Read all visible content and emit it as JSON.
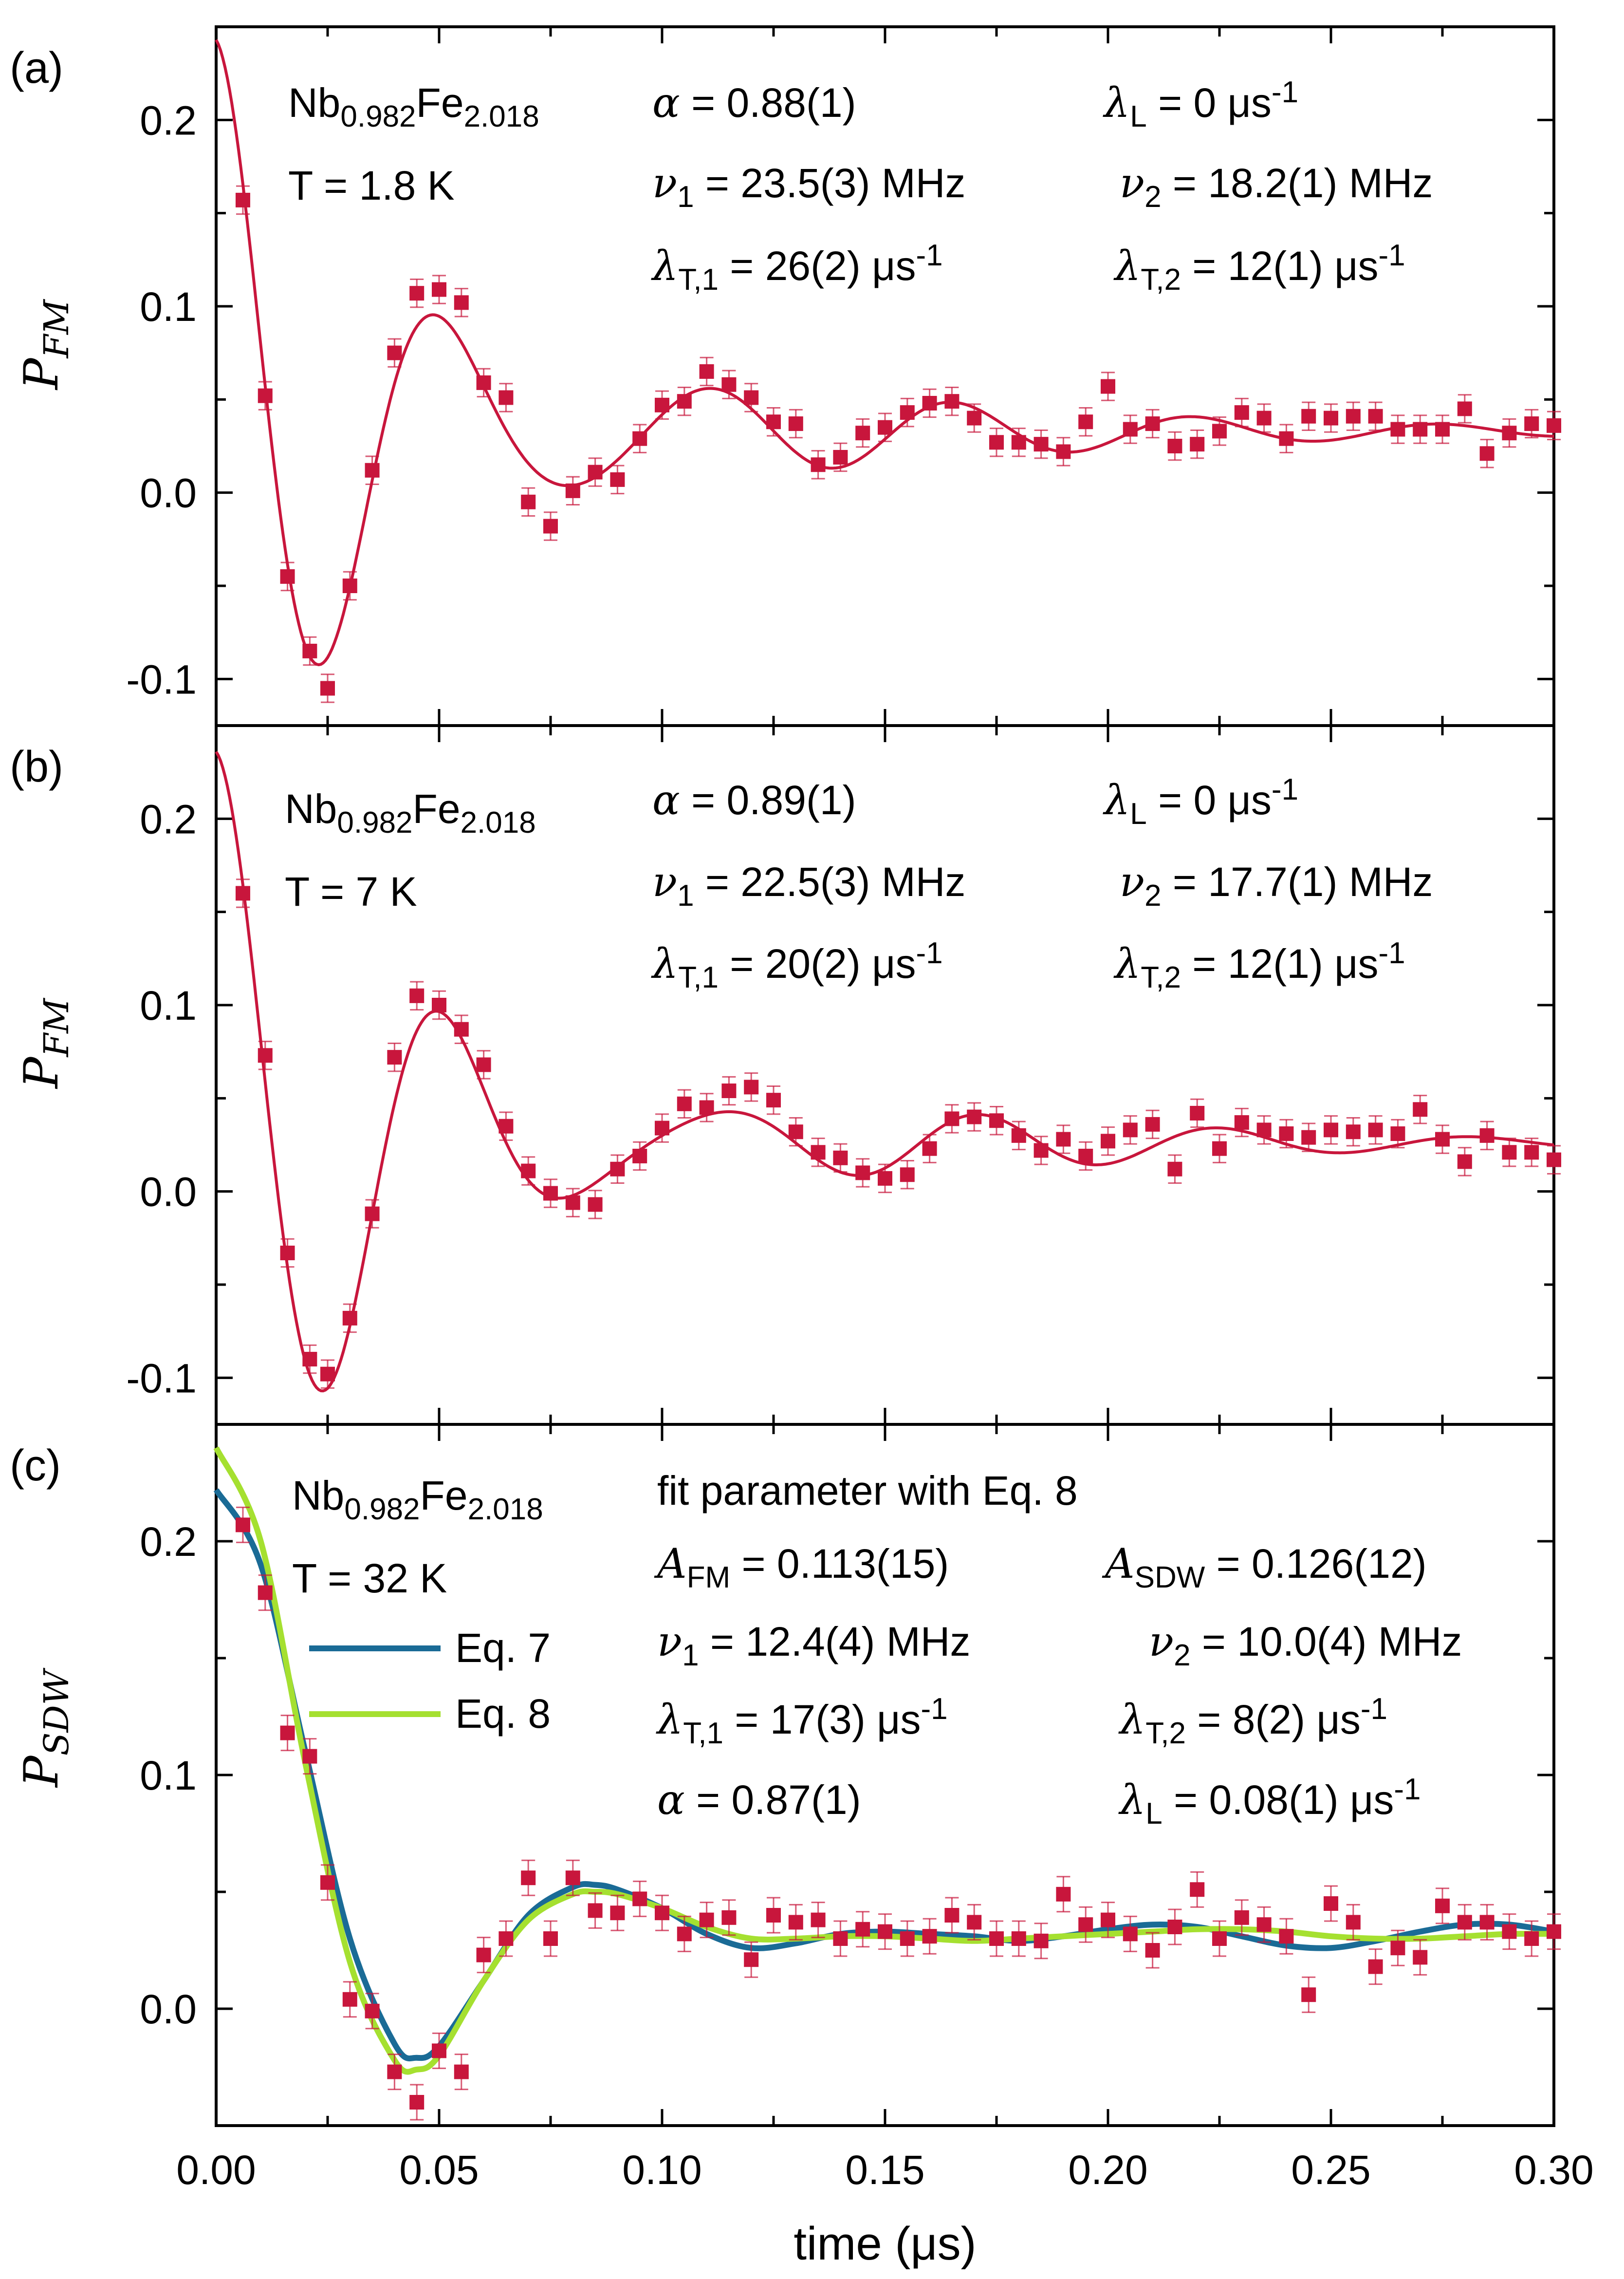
{
  "chart_data": [
    {
      "type": "scatter",
      "panel": "(a)",
      "ylabel_main": "P",
      "ylabel_sub": "FM",
      "xlim": [
        0,
        0.3
      ],
      "ylim": [
        -0.125,
        0.25
      ],
      "yticks": [
        -0.1,
        0.0,
        0.1,
        0.2
      ],
      "ytick_labels": [
        "-0.1",
        "0.0",
        "0.1",
        "0.2"
      ],
      "annotations": {
        "compound": "Nb0.982Fe2.018",
        "temperature": "T = 1.8 K",
        "alpha": "α = 0.88(1)",
        "lambda_L": "λL = 0 μs-1",
        "nu1": "ν1 = 23.5(3) MHz",
        "nu2": "ν2 = 18.2(1) MHz",
        "lambda_T1": "λT,1 = 26(2) μs-1",
        "lambda_T2": "λT,2 = 12(1) μs-1"
      },
      "fit_params": {
        "nu1": 23.5,
        "nu2": 18.2,
        "lT1": 26,
        "lT2": 12,
        "c": 0.033,
        "A": 0.21
      },
      "series": [
        {
          "name": "data",
          "x": [
            0.006,
            0.011,
            0.016,
            0.021,
            0.025,
            0.03,
            0.035,
            0.04,
            0.045,
            0.05,
            0.055,
            0.06,
            0.065,
            0.07,
            0.075,
            0.08,
            0.085,
            0.09,
            0.095,
            0.1,
            0.105,
            0.11,
            0.115,
            0.12,
            0.125,
            0.13,
            0.135,
            0.14,
            0.145,
            0.15,
            0.155,
            0.16,
            0.165,
            0.17,
            0.175,
            0.18,
            0.185,
            0.19,
            0.195,
            0.2,
            0.205,
            0.21,
            0.215,
            0.22,
            0.225,
            0.23,
            0.235,
            0.24,
            0.245,
            0.25,
            0.255,
            0.26,
            0.265,
            0.27,
            0.275,
            0.28,
            0.285,
            0.29,
            0.295,
            0.3
          ],
          "y": [
            0.157,
            0.052,
            -0.045,
            -0.085,
            -0.105,
            -0.05,
            0.012,
            0.075,
            0.107,
            0.109,
            0.102,
            0.059,
            0.051,
            -0.005,
            -0.018,
            0.001,
            0.011,
            0.007,
            0.029,
            0.047,
            0.049,
            0.065,
            0.058,
            0.051,
            0.038,
            0.037,
            0.015,
            0.019,
            0.032,
            0.035,
            0.043,
            0.048,
            0.049,
            0.04,
            0.027,
            0.027,
            0.026,
            0.022,
            0.038,
            0.057,
            0.034,
            0.037,
            0.025,
            0.026,
            0.033,
            0.043,
            0.04,
            0.029,
            0.041,
            0.04,
            0.041,
            0.041,
            0.034,
            0.034,
            0.034,
            0.045,
            0.021,
            0.032,
            0.037,
            0.036
          ]
        },
        {
          "name": "fit",
          "color": "#c8163c"
        }
      ]
    },
    {
      "type": "scatter",
      "panel": "(b)",
      "ylabel_main": "P",
      "ylabel_sub": "FM",
      "xlim": [
        0,
        0.3
      ],
      "ylim": [
        -0.125,
        0.25
      ],
      "yticks": [
        -0.1,
        0.0,
        0.1,
        0.2
      ],
      "ytick_labels": [
        "-0.1",
        "0.0",
        "0.1",
        "0.2"
      ],
      "annotations": {
        "compound": "Nb0.982Fe2.018",
        "temperature": "T = 7 K",
        "alpha": "α = 0.89(1)",
        "lambda_L": "λL = 0 μs-1",
        "nu1": "ν1 = 22.5(3) MHz",
        "nu2": "ν2 = 17.7(1) MHz",
        "lambda_T1": "λT,1 = 20(2) μs-1",
        "lambda_T2": "λT,2 = 12(1) μs-1"
      },
      "fit_params": {
        "nu1": 22.5,
        "nu2": 17.7,
        "lT1": 20,
        "lT2": 12,
        "c": 0.026,
        "A": 0.21
      },
      "series": [
        {
          "name": "data",
          "x": [
            0.006,
            0.011,
            0.016,
            0.021,
            0.025,
            0.03,
            0.035,
            0.04,
            0.045,
            0.05,
            0.055,
            0.06,
            0.065,
            0.07,
            0.075,
            0.08,
            0.085,
            0.09,
            0.095,
            0.1,
            0.105,
            0.11,
            0.115,
            0.12,
            0.125,
            0.13,
            0.135,
            0.14,
            0.145,
            0.15,
            0.155,
            0.16,
            0.165,
            0.17,
            0.175,
            0.18,
            0.185,
            0.19,
            0.195,
            0.2,
            0.205,
            0.21,
            0.215,
            0.22,
            0.225,
            0.23,
            0.235,
            0.24,
            0.245,
            0.25,
            0.255,
            0.26,
            0.265,
            0.27,
            0.275,
            0.28,
            0.285,
            0.29,
            0.295,
            0.3
          ],
          "y": [
            0.16,
            0.073,
            -0.033,
            -0.09,
            -0.098,
            -0.068,
            -0.012,
            0.072,
            0.105,
            0.1,
            0.087,
            0.068,
            0.035,
            0.011,
            -0.001,
            -0.006,
            -0.007,
            0.012,
            0.019,
            0.034,
            0.047,
            0.045,
            0.054,
            0.056,
            0.049,
            0.032,
            0.021,
            0.018,
            0.01,
            0.007,
            0.009,
            0.023,
            0.039,
            0.04,
            0.038,
            0.03,
            0.022,
            0.028,
            0.019,
            0.027,
            0.033,
            0.036,
            0.012,
            0.042,
            0.023,
            0.037,
            0.033,
            0.031,
            0.029,
            0.033,
            0.032,
            0.033,
            0.031,
            0.044,
            0.028,
            0.016,
            0.03,
            0.021,
            0.021,
            0.017
          ]
        },
        {
          "name": "fit",
          "color": "#c8163c"
        }
      ]
    },
    {
      "type": "scatter",
      "panel": "(c)",
      "ylabel_main": "P",
      "ylabel_sub": "SDW",
      "xlabel": "time (μs)",
      "xlim": [
        0,
        0.3
      ],
      "xticks": [
        0.0,
        0.05,
        0.1,
        0.15,
        0.2,
        0.25,
        0.3
      ],
      "xtick_labels": [
        "0.00",
        "0.05",
        "0.10",
        "0.15",
        "0.20",
        "0.25",
        "0.30"
      ],
      "ylim": [
        -0.05,
        0.25
      ],
      "yticks": [
        0.0,
        0.1,
        0.2
      ],
      "ytick_labels": [
        "0.0",
        "0.1",
        "0.2"
      ],
      "annotations": {
        "compound": "Nb0.982Fe2.018",
        "temperature": "T = 32 K",
        "header": "fit parameter with Eq. 8",
        "A_FM": "AFM = 0.113(15)",
        "A_SDW": "ASDW = 0.126(12)",
        "nu1": "ν1 = 12.4(4) MHz",
        "nu2": "ν2 = 10.0(4) MHz",
        "lambda_T1": "λT,1 = 17(3) μs-1",
        "lambda_T2": "λT,2 = 8(2) μs-1",
        "alpha": "α = 0.87(1)",
        "lambda_L": "λL = 0.08(1) μs-1"
      },
      "legend": [
        {
          "label": "Eq. 7",
          "color": "#1a6b96"
        },
        {
          "label": "Eq. 8",
          "color": "#a5e030"
        }
      ],
      "series": [
        {
          "name": "data",
          "x": [
            0.006,
            0.011,
            0.016,
            0.021,
            0.025,
            0.03,
            0.035,
            0.04,
            0.045,
            0.05,
            0.055,
            0.06,
            0.065,
            0.07,
            0.075,
            0.08,
            0.085,
            0.09,
            0.095,
            0.1,
            0.105,
            0.11,
            0.115,
            0.12,
            0.125,
            0.13,
            0.135,
            0.14,
            0.145,
            0.15,
            0.155,
            0.16,
            0.165,
            0.17,
            0.175,
            0.18,
            0.185,
            0.19,
            0.195,
            0.2,
            0.205,
            0.21,
            0.215,
            0.22,
            0.225,
            0.23,
            0.235,
            0.24,
            0.245,
            0.25,
            0.255,
            0.26,
            0.265,
            0.27,
            0.275,
            0.28,
            0.285,
            0.29,
            0.295,
            0.3
          ],
          "y": [
            0.207,
            0.178,
            0.118,
            0.108,
            0.054,
            0.004,
            -0.001,
            -0.027,
            -0.04,
            -0.018,
            -0.027,
            0.023,
            0.03,
            0.056,
            0.03,
            0.056,
            0.042,
            0.041,
            0.047,
            0.041,
            0.032,
            0.038,
            0.039,
            0.021,
            0.04,
            0.037,
            0.038,
            0.03,
            0.034,
            0.033,
            0.03,
            0.031,
            0.04,
            0.037,
            0.03,
            0.03,
            0.029,
            0.049,
            0.036,
            0.038,
            0.032,
            0.025,
            0.035,
            0.051,
            0.03,
            0.039,
            0.036,
            0.031,
            0.006,
            0.045,
            0.037,
            0.018,
            0.026,
            0.022,
            0.044,
            0.037,
            0.037,
            0.033,
            0.03,
            0.033
          ]
        },
        {
          "name": "Eq. 7",
          "color": "#1a6b96",
          "x": [
            0.0,
            0.01,
            0.02,
            0.03,
            0.04,
            0.045,
            0.05,
            0.06,
            0.07,
            0.08,
            0.085,
            0.09,
            0.1,
            0.11,
            0.12,
            0.13,
            0.14,
            0.15,
            0.16,
            0.17,
            0.18,
            0.19,
            0.2,
            0.21,
            0.22,
            0.23,
            0.24,
            0.25,
            0.26,
            0.27,
            0.28,
            0.29,
            0.3
          ],
          "y": [
            0.222,
            0.19,
            0.11,
            0.03,
            -0.015,
            -0.021,
            -0.016,
            0.012,
            0.04,
            0.052,
            0.053,
            0.051,
            0.043,
            0.032,
            0.026,
            0.028,
            0.032,
            0.033,
            0.032,
            0.031,
            0.029,
            0.031,
            0.034,
            0.036,
            0.035,
            0.031,
            0.027,
            0.026,
            0.029,
            0.033,
            0.036,
            0.036,
            0.033
          ]
        },
        {
          "name": "Eq. 8",
          "color": "#a5e030",
          "x": [
            0.0,
            0.01,
            0.02,
            0.03,
            0.04,
            0.045,
            0.05,
            0.06,
            0.07,
            0.08,
            0.085,
            0.09,
            0.1,
            0.11,
            0.12,
            0.13,
            0.14,
            0.15,
            0.16,
            0.17,
            0.18,
            0.19,
            0.2,
            0.21,
            0.22,
            0.23,
            0.24,
            0.25,
            0.26,
            0.27,
            0.28,
            0.29,
            0.3
          ],
          "y": [
            0.24,
            0.2,
            0.105,
            0.02,
            -0.022,
            -0.026,
            -0.02,
            0.012,
            0.038,
            0.049,
            0.05,
            0.049,
            0.043,
            0.035,
            0.03,
            0.03,
            0.031,
            0.031,
            0.03,
            0.029,
            0.03,
            0.031,
            0.032,
            0.033,
            0.034,
            0.034,
            0.033,
            0.031,
            0.03,
            0.03,
            0.031,
            0.032,
            0.032
          ]
        }
      ]
    }
  ]
}
